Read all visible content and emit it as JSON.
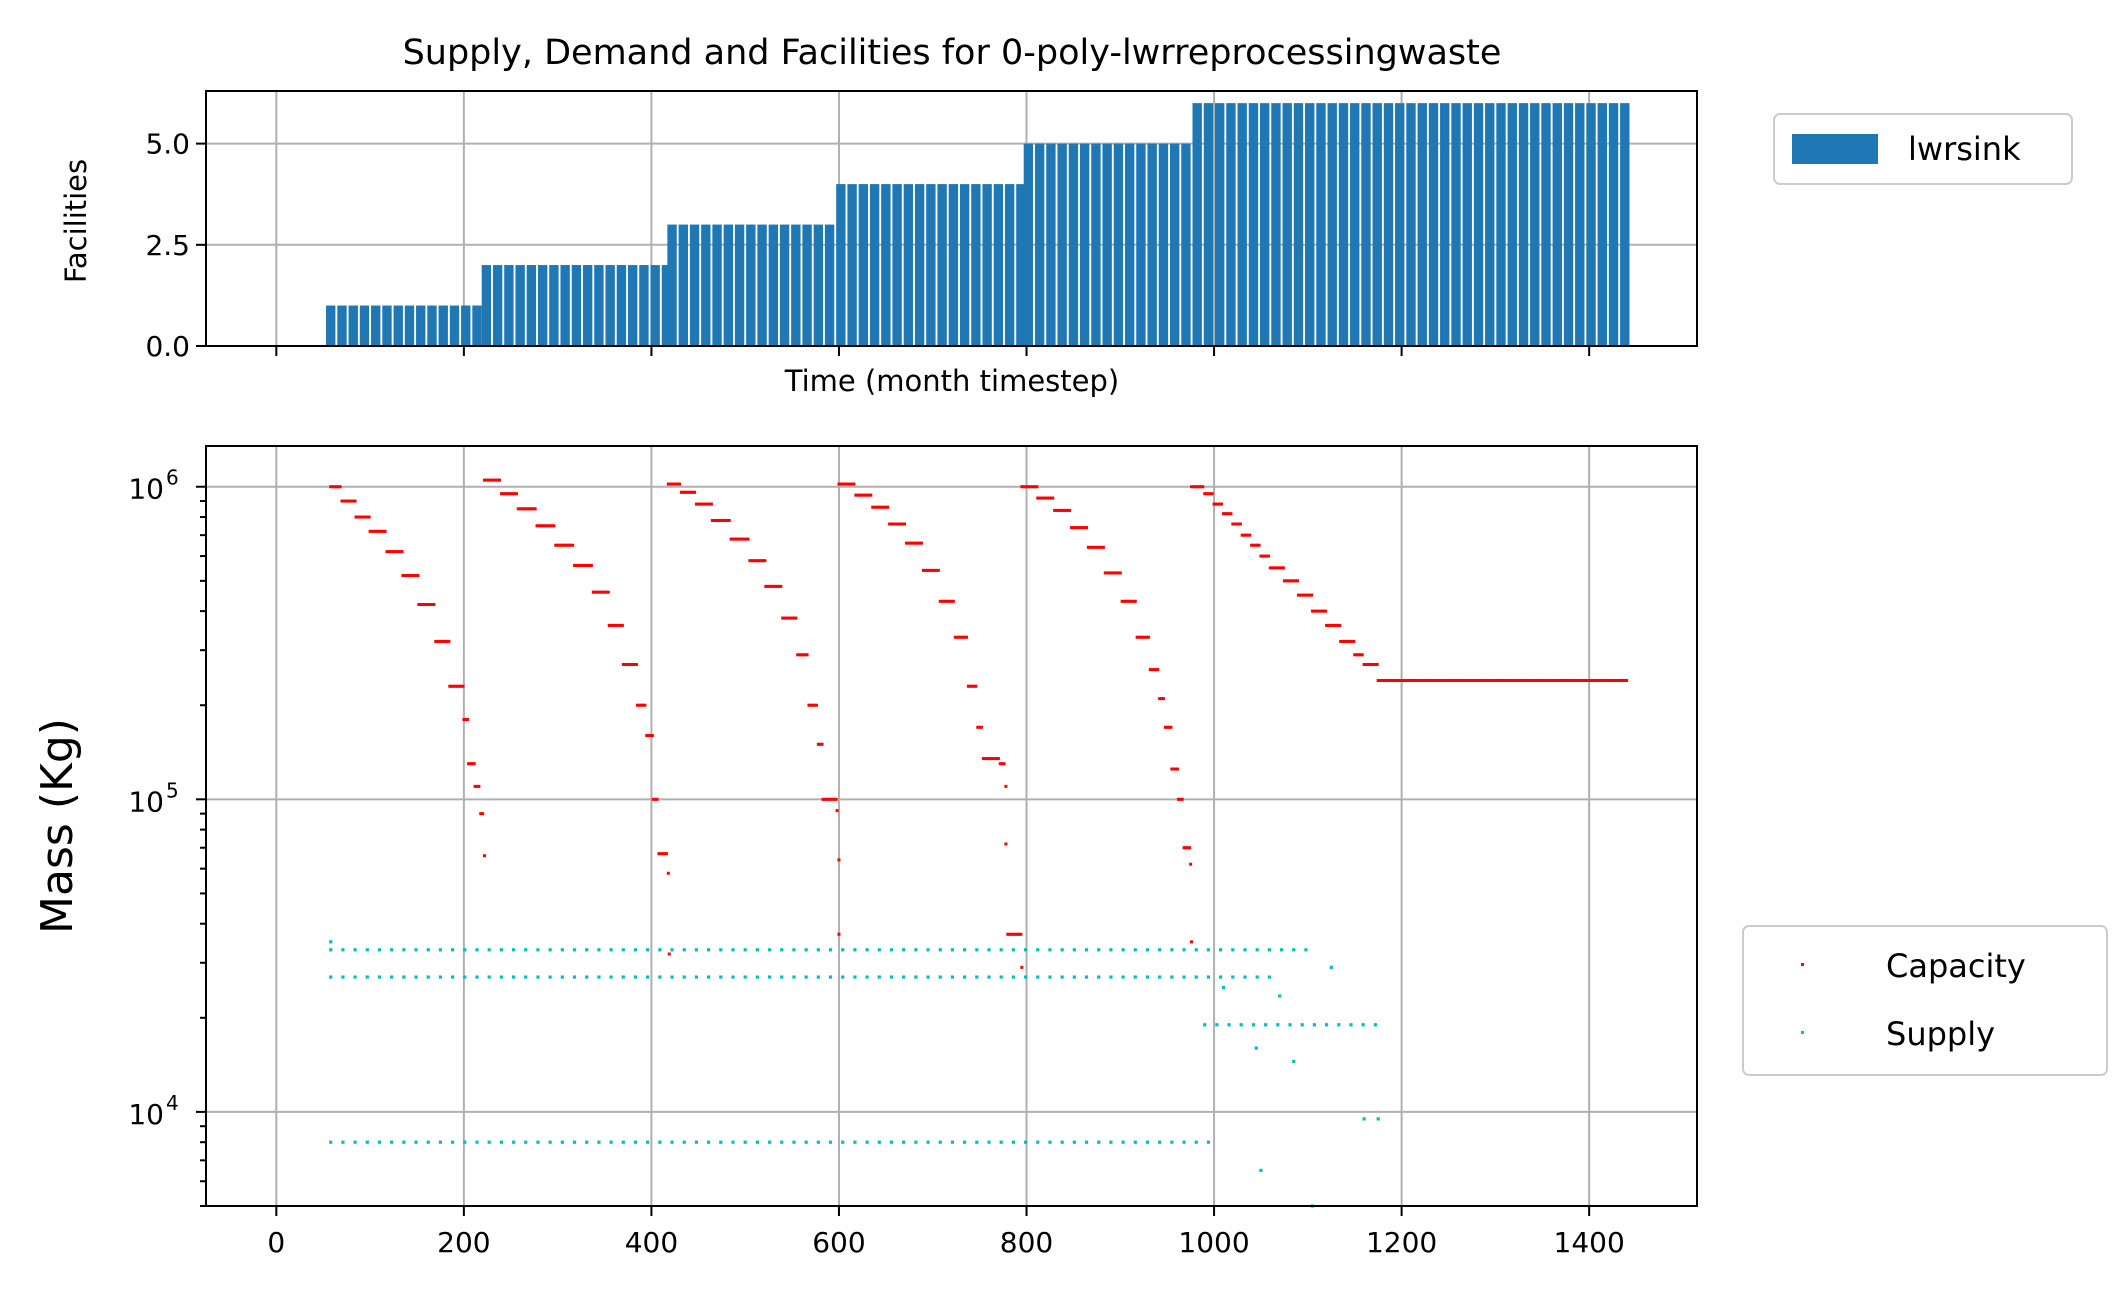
{
  "title": "Supply, Demand and Facilities for 0-poly-lwrreprocessingwaste",
  "colors": {
    "facility_bar": "#1f77b4",
    "capacity": "#ff0000",
    "supply": "#00bfbf",
    "grid": "#b0b0b0"
  },
  "chart_data": [
    {
      "type": "bar",
      "title": "Supply, Demand and Facilities for 0-poly-lwrreprocessingwaste",
      "xlabel": "Time (month timestep)",
      "ylabel": "Facilities",
      "xlim": [
        -75,
        1515
      ],
      "ylim": [
        0,
        6.3
      ],
      "x_ticks": [
        0,
        200,
        400,
        600,
        800,
        1000,
        1200,
        1400
      ],
      "y_ticks": [
        0.0,
        2.5,
        5.0
      ],
      "y_tick_labels": [
        "0.0",
        "2.5",
        "5.0"
      ],
      "grid": true,
      "legend_position": "outside-right-top",
      "series": [
        {
          "name": "lwrsink",
          "bar_width": 10,
          "bar_spacing": 12,
          "steps": [
            {
              "x_start": 58,
              "x_end": 214,
              "value": 1
            },
            {
              "x_start": 224,
              "x_end": 418,
              "value": 2
            },
            {
              "x_start": 422,
              "x_end": 598,
              "value": 3
            },
            {
              "x_start": 602,
              "x_end": 798,
              "value": 4
            },
            {
              "x_start": 802,
              "x_end": 976,
              "value": 5
            },
            {
              "x_start": 982,
              "x_end": 1440,
              "value": 6
            }
          ]
        }
      ]
    },
    {
      "type": "scatter",
      "xlabel": "",
      "ylabel": "Mass (Kg)",
      "xlim": [
        -75,
        1515
      ],
      "ylim": [
        5000,
        1350000
      ],
      "yscale": "log",
      "x_ticks": [
        0,
        200,
        400,
        600,
        800,
        1000,
        1200,
        1400
      ],
      "x_tick_labels": [
        "0",
        "200",
        "400",
        "600",
        "800",
        "1000",
        "1200",
        "1400"
      ],
      "y_tick_labels": [
        "10^6",
        "10^5",
        "10^4"
      ],
      "grid": true,
      "legend_position": "outside-right-bottom",
      "series": [
        {
          "name": "Capacity",
          "marker": "dot",
          "cycles": [
            {
              "x_start": 58,
              "y_start": 1000000,
              "steps": [
                [
                  58,
                  1000000
                ],
                [
                  70,
                  900000
                ],
                [
                  85,
                  800000
                ],
                [
                  100,
                  720000
                ],
                [
                  118,
                  620000
                ],
                [
                  135,
                  520000
                ],
                [
                  152,
                  420000
                ],
                [
                  170,
                  320000
                ],
                [
                  185,
                  230000
                ],
                [
                  200,
                  180000
                ],
                [
                  205,
                  130000
                ],
                [
                  212,
                  110000
                ],
                [
                  218,
                  90000
                ],
                [
                  222,
                  66000
                ]
              ]
            },
            {
              "x_start": 222,
              "y_start": 1050000,
              "steps": [
                [
                  222,
                  1050000
                ],
                [
                  240,
                  950000
                ],
                [
                  258,
                  850000
                ],
                [
                  278,
                  750000
                ],
                [
                  298,
                  650000
                ],
                [
                  318,
                  560000
                ],
                [
                  338,
                  460000
                ],
                [
                  355,
                  360000
                ],
                [
                  370,
                  270000
                ],
                [
                  385,
                  200000
                ],
                [
                  395,
                  160000
                ],
                [
                  402,
                  100000
                ],
                [
                  408,
                  67000
                ],
                [
                  418,
                  58000
                ],
                [
                  419,
                  32000
                ]
              ]
            },
            {
              "x_start": 418,
              "y_start": 1020000,
              "steps": [
                [
                  418,
                  1020000
                ],
                [
                  432,
                  960000
                ],
                [
                  448,
                  880000
                ],
                [
                  465,
                  780000
                ],
                [
                  485,
                  680000
                ],
                [
                  505,
                  580000
                ],
                [
                  522,
                  480000
                ],
                [
                  540,
                  380000
                ],
                [
                  556,
                  290000
                ],
                [
                  568,
                  200000
                ],
                [
                  578,
                  150000
                ],
                [
                  583,
                  100000
                ],
                [
                  598,
                  92000
                ],
                [
                  600,
                  64000
                ],
                [
                  600,
                  37000
                ]
              ]
            },
            {
              "x_start": 600,
              "y_start": 1020000,
              "steps": [
                [
                  600,
                  1020000
                ],
                [
                  618,
                  940000
                ],
                [
                  636,
                  860000
                ],
                [
                  654,
                  760000
                ],
                [
                  672,
                  660000
                ],
                [
                  690,
                  540000
                ],
                [
                  708,
                  430000
                ],
                [
                  724,
                  330000
                ],
                [
                  738,
                  230000
                ],
                [
                  748,
                  170000
                ],
                [
                  754,
                  135000
                ],
                [
                  772,
                  130000
                ],
                [
                  778,
                  110000
                ],
                [
                  778,
                  72000
                ],
                [
                  780,
                  37000
                ],
                [
                  792,
                  37000
                ],
                [
                  795,
                  29000
                ]
              ]
            },
            {
              "x_start": 795,
              "y_start": 1000000,
              "steps": [
                [
                  795,
                  1000000
                ],
                [
                  812,
                  920000
                ],
                [
                  830,
                  840000
                ],
                [
                  848,
                  740000
                ],
                [
                  866,
                  640000
                ],
                [
                  884,
                  530000
                ],
                [
                  902,
                  430000
                ],
                [
                  918,
                  330000
                ],
                [
                  932,
                  260000
                ],
                [
                  942,
                  210000
                ],
                [
                  948,
                  170000
                ],
                [
                  955,
                  125000
                ],
                [
                  962,
                  100000
                ],
                [
                  968,
                  70000
                ],
                [
                  975,
                  62000
                ],
                [
                  976,
                  35000
                ]
              ]
            },
            {
              "x_start": 976,
              "y_start": 1000000,
              "steps": [
                [
                  976,
                  1000000
                ],
                [
                  990,
                  950000
                ],
                [
                  1000,
                  880000
                ],
                [
                  1010,
                  820000
                ],
                [
                  1020,
                  760000
                ],
                [
                  1030,
                  700000
                ],
                [
                  1040,
                  650000
                ],
                [
                  1050,
                  600000
                ],
                [
                  1060,
                  550000
                ],
                [
                  1075,
                  500000
                ],
                [
                  1090,
                  450000
                ],
                [
                  1105,
                  400000
                ],
                [
                  1120,
                  360000
                ],
                [
                  1135,
                  320000
                ],
                [
                  1150,
                  290000
                ],
                [
                  1160,
                  270000
                ],
                [
                  1175,
                  240000
                ],
                [
                  1440,
                  240000
                ]
              ]
            }
          ]
        },
        {
          "name": "Supply",
          "marker": "dot",
          "rows": [
            {
              "y": 33000,
              "x_start": 58,
              "x_end": 1110,
              "x_step": 13
            },
            {
              "y": 27000,
              "x_start": 58,
              "x_end": 1070,
              "x_step": 13
            },
            {
              "y": 8000,
              "x_start": 58,
              "x_end": 995,
              "x_step": 13
            },
            {
              "y": 19000,
              "x_start": 990,
              "x_end": 1180,
              "x_step": 13
            }
          ],
          "points": [
            [
              58,
              35000
            ],
            [
              1010,
              25000
            ],
            [
              1070,
              23500
            ],
            [
              1125,
              29000
            ],
            [
              1045,
              16000
            ],
            [
              1085,
              14500
            ],
            [
              1160,
              9500
            ],
            [
              1175,
              9500
            ],
            [
              1050,
              6500
            ],
            [
              1105,
              5000
            ]
          ]
        }
      ]
    }
  ],
  "legend": {
    "top": [
      {
        "label": "lwrsink"
      }
    ],
    "bottom": [
      {
        "label": "Capacity"
      },
      {
        "label": "Supply"
      }
    ]
  }
}
